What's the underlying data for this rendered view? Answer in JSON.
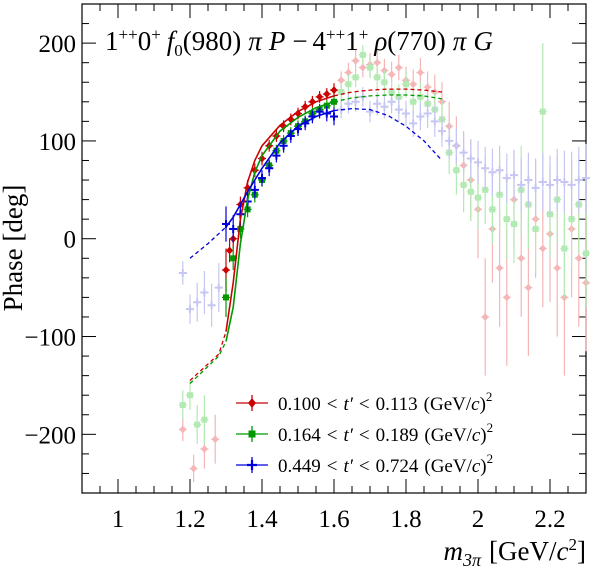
{
  "chart_data": {
    "type": "scatter",
    "title_parts": {
      "wave1_spin": "1",
      "wave1_sup": "++",
      "wave1_m": "0",
      "wave1_msup": "+",
      "isobar1": "f",
      "isobar1_sub": "0",
      "isobar1_mass": "(980)",
      "bachelor1": "π",
      "L1": "P",
      "minus": "−",
      "wave2_spin": "4",
      "wave2_sup": "++",
      "wave2_m": "1",
      "wave2_msup": "+",
      "isobar2": "ρ",
      "isobar2_mass": "(770)",
      "bachelor2": "π",
      "L2": "G"
    },
    "ylabel": "Phase [deg]",
    "xlabel_parts": {
      "var": "m",
      "sub": "3π",
      "unit": "[GeV/",
      "c": "c",
      "sup": "2",
      "close": "]"
    },
    "xlim": [
      0.9,
      2.3
    ],
    "ylim": [
      -260,
      240
    ],
    "xticks": [
      1,
      1.2,
      1.4,
      1.6,
      1.8,
      2,
      2.2
    ],
    "xtick_labels": [
      "1",
      "1.2",
      "1.4",
      "1.6",
      "1.8",
      "2",
      "2.2"
    ],
    "yticks": [
      -200,
      -100,
      0,
      100,
      200
    ],
    "ytick_labels": [
      "−200",
      "−100",
      "0",
      "100",
      "200"
    ],
    "fit_range": [
      1.3,
      1.6
    ],
    "legend_position": "bottom-right",
    "series": [
      {
        "name_parts": {
          "lo": "0.100",
          "lt1": "<",
          "var": "t′",
          "lt2": "<",
          "hi": "0.113",
          "unit": "(GeV/",
          "c": "c",
          "close": ")",
          "sup": "2"
        },
        "color": "#cc0000",
        "light_color": "#f4b6b6",
        "marker": "diamond",
        "points": [
          [
            1.18,
            -195,
            12
          ],
          [
            1.21,
            -235,
            14
          ],
          [
            1.24,
            -215,
            20
          ],
          [
            1.27,
            -205,
            25
          ],
          [
            1.3,
            -32,
            22
          ],
          [
            1.31,
            -12,
            12
          ],
          [
            1.32,
            0,
            10
          ],
          [
            1.34,
            35,
            8
          ],
          [
            1.36,
            52,
            8
          ],
          [
            1.38,
            70,
            7
          ],
          [
            1.4,
            82,
            7
          ],
          [
            1.42,
            95,
            6
          ],
          [
            1.44,
            105,
            6
          ],
          [
            1.46,
            115,
            6
          ],
          [
            1.48,
            122,
            6
          ],
          [
            1.5,
            128,
            6
          ],
          [
            1.52,
            135,
            6
          ],
          [
            1.54,
            140,
            6
          ],
          [
            1.56,
            145,
            6
          ],
          [
            1.58,
            148,
            6
          ],
          [
            1.6,
            152,
            7
          ],
          [
            1.62,
            162,
            9
          ],
          [
            1.64,
            170,
            10
          ],
          [
            1.66,
            182,
            11
          ],
          [
            1.68,
            175,
            10
          ],
          [
            1.7,
            178,
            12
          ],
          [
            1.72,
            180,
            12
          ],
          [
            1.74,
            172,
            12
          ],
          [
            1.76,
            168,
            13
          ],
          [
            1.78,
            175,
            13
          ],
          [
            1.8,
            162,
            14
          ],
          [
            1.82,
            158,
            15
          ],
          [
            1.84,
            170,
            15
          ],
          [
            1.86,
            155,
            16
          ],
          [
            1.88,
            150,
            18
          ],
          [
            1.9,
            140,
            20
          ],
          [
            1.92,
            115,
            25
          ],
          [
            1.94,
            95,
            30
          ],
          [
            1.96,
            75,
            35
          ],
          [
            1.98,
            60,
            40
          ],
          [
            2.0,
            30,
            50
          ],
          [
            2.02,
            -80,
            60
          ],
          [
            2.04,
            10,
            55
          ],
          [
            2.06,
            -30,
            60
          ],
          [
            2.08,
            -60,
            70
          ],
          [
            2.1,
            40,
            50
          ],
          [
            2.12,
            -20,
            60
          ],
          [
            2.14,
            -50,
            70
          ],
          [
            2.16,
            20,
            60
          ],
          [
            2.18,
            -10,
            60
          ],
          [
            2.2,
            5,
            70
          ],
          [
            2.22,
            -30,
            70
          ],
          [
            2.24,
            -60,
            80
          ],
          [
            2.26,
            10,
            70
          ],
          [
            2.28,
            -20,
            70
          ],
          [
            2.3,
            -45,
            70
          ]
        ],
        "fit": [
          [
            1.2,
            -145
          ],
          [
            1.28,
            -118
          ],
          [
            1.3,
            -95
          ],
          [
            1.32,
            -45
          ],
          [
            1.34,
            20
          ],
          [
            1.36,
            58
          ],
          [
            1.38,
            80
          ],
          [
            1.4,
            95
          ],
          [
            1.45,
            116
          ],
          [
            1.5,
            130
          ],
          [
            1.55,
            140
          ],
          [
            1.6,
            146
          ],
          [
            1.65,
            150
          ],
          [
            1.7,
            152
          ],
          [
            1.75,
            153
          ],
          [
            1.8,
            153
          ],
          [
            1.85,
            152
          ],
          [
            1.9,
            150
          ]
        ]
      },
      {
        "name_parts": {
          "lo": "0.164",
          "lt1": "<",
          "var": "t′",
          "lt2": "<",
          "hi": "0.189",
          "unit": "(GeV/",
          "c": "c",
          "close": ")",
          "sup": "2"
        },
        "color": "#009900",
        "light_color": "#b3eab3",
        "marker": "square",
        "points": [
          [
            1.18,
            -170,
            15
          ],
          [
            1.2,
            -160,
            15
          ],
          [
            1.22,
            -190,
            20
          ],
          [
            1.24,
            -185,
            25
          ],
          [
            1.3,
            -60,
            20
          ],
          [
            1.32,
            -20,
            12
          ],
          [
            1.34,
            10,
            10
          ],
          [
            1.36,
            30,
            8
          ],
          [
            1.38,
            45,
            8
          ],
          [
            1.4,
            60,
            7
          ],
          [
            1.42,
            75,
            6
          ],
          [
            1.44,
            90,
            6
          ],
          [
            1.46,
            100,
            6
          ],
          [
            1.48,
            108,
            6
          ],
          [
            1.5,
            115,
            6
          ],
          [
            1.52,
            120,
            6
          ],
          [
            1.54,
            128,
            6
          ],
          [
            1.56,
            132,
            6
          ],
          [
            1.58,
            136,
            6
          ],
          [
            1.6,
            140,
            7
          ],
          [
            1.62,
            150,
            9
          ],
          [
            1.64,
            158,
            10
          ],
          [
            1.66,
            165,
            10
          ],
          [
            1.68,
            188,
            10
          ],
          [
            1.7,
            175,
            11
          ],
          [
            1.72,
            165,
            12
          ],
          [
            1.74,
            160,
            12
          ],
          [
            1.76,
            150,
            13
          ],
          [
            1.78,
            145,
            13
          ],
          [
            1.8,
            158,
            14
          ],
          [
            1.82,
            140,
            15
          ],
          [
            1.84,
            145,
            15
          ],
          [
            1.86,
            138,
            16
          ],
          [
            1.88,
            132,
            18
          ],
          [
            1.9,
            122,
            20
          ],
          [
            1.92,
            88,
            22
          ],
          [
            1.94,
            70,
            25
          ],
          [
            1.96,
            55,
            28
          ],
          [
            1.98,
            48,
            30
          ],
          [
            2.0,
            42,
            32
          ],
          [
            2.02,
            50,
            35
          ],
          [
            2.04,
            30,
            35
          ],
          [
            2.06,
            45,
            40
          ],
          [
            2.08,
            20,
            40
          ],
          [
            2.1,
            15,
            40
          ],
          [
            2.12,
            50,
            45
          ],
          [
            2.14,
            35,
            45
          ],
          [
            2.16,
            10,
            45
          ],
          [
            2.18,
            130,
            70
          ],
          [
            2.2,
            25,
            45
          ],
          [
            2.22,
            40,
            45
          ],
          [
            2.24,
            -10,
            50
          ],
          [
            2.26,
            20,
            50
          ],
          [
            2.28,
            35,
            50
          ],
          [
            2.3,
            -15,
            55
          ]
        ],
        "fit": [
          [
            1.2,
            -148
          ],
          [
            1.28,
            -120
          ],
          [
            1.3,
            -105
          ],
          [
            1.32,
            -70
          ],
          [
            1.34,
            -5
          ],
          [
            1.36,
            40
          ],
          [
            1.38,
            68
          ],
          [
            1.4,
            85
          ],
          [
            1.45,
            110
          ],
          [
            1.5,
            124
          ],
          [
            1.55,
            134
          ],
          [
            1.6,
            140
          ],
          [
            1.65,
            144
          ],
          [
            1.7,
            146
          ],
          [
            1.75,
            147
          ],
          [
            1.8,
            147
          ],
          [
            1.85,
            146
          ],
          [
            1.9,
            143
          ]
        ]
      },
      {
        "name_parts": {
          "lo": "0.449",
          "lt1": "<",
          "var": "t′",
          "lt2": "<",
          "hi": "0.724",
          "unit": "(GeV/",
          "c": "c",
          "close": ")",
          "sup": "2"
        },
        "color": "#0000dd",
        "light_color": "#c6c6f2",
        "marker": "cross",
        "points": [
          [
            1.18,
            -35,
            12
          ],
          [
            1.2,
            -72,
            15
          ],
          [
            1.22,
            -65,
            20
          ],
          [
            1.24,
            -55,
            22
          ],
          [
            1.26,
            -68,
            22
          ],
          [
            1.28,
            -50,
            25
          ],
          [
            1.3,
            15,
            18
          ],
          [
            1.32,
            10,
            14
          ],
          [
            1.34,
            25,
            12
          ],
          [
            1.36,
            38,
            10
          ],
          [
            1.38,
            50,
            9
          ],
          [
            1.4,
            62,
            8
          ],
          [
            1.42,
            72,
            8
          ],
          [
            1.44,
            85,
            7
          ],
          [
            1.46,
            95,
            7
          ],
          [
            1.48,
            105,
            7
          ],
          [
            1.5,
            112,
            7
          ],
          [
            1.52,
            118,
            7
          ],
          [
            1.54,
            125,
            7
          ],
          [
            1.56,
            130,
            7
          ],
          [
            1.58,
            128,
            8
          ],
          [
            1.6,
            125,
            9
          ],
          [
            1.62,
            132,
            9
          ],
          [
            1.64,
            138,
            10
          ],
          [
            1.66,
            140,
            10
          ],
          [
            1.68,
            145,
            10
          ],
          [
            1.7,
            130,
            11
          ],
          [
            1.72,
            138,
            12
          ],
          [
            1.74,
            135,
            12
          ],
          [
            1.76,
            140,
            12
          ],
          [
            1.78,
            132,
            13
          ],
          [
            1.8,
            128,
            13
          ],
          [
            1.82,
            118,
            14
          ],
          [
            1.84,
            125,
            14
          ],
          [
            1.86,
            128,
            15
          ],
          [
            1.88,
            120,
            16
          ],
          [
            1.9,
            110,
            16
          ],
          [
            1.92,
            100,
            18
          ],
          [
            1.94,
            95,
            18
          ],
          [
            1.96,
            88,
            20
          ],
          [
            1.98,
            82,
            20
          ],
          [
            2.0,
            78,
            22
          ],
          [
            2.02,
            72,
            22
          ],
          [
            2.04,
            68,
            24
          ],
          [
            2.06,
            70,
            25
          ],
          [
            2.08,
            62,
            25
          ],
          [
            2.1,
            65,
            26
          ],
          [
            2.12,
            55,
            28
          ],
          [
            2.14,
            60,
            28
          ],
          [
            2.16,
            52,
            30
          ],
          [
            2.18,
            58,
            30
          ],
          [
            2.2,
            55,
            30
          ],
          [
            2.22,
            60,
            32
          ],
          [
            2.24,
            58,
            32
          ],
          [
            2.26,
            55,
            34
          ],
          [
            2.28,
            60,
            34
          ],
          [
            2.3,
            62,
            35
          ]
        ],
        "fit": [
          [
            1.2,
            -20
          ],
          [
            1.25,
            -5
          ],
          [
            1.3,
            12
          ],
          [
            1.32,
            22
          ],
          [
            1.34,
            35
          ],
          [
            1.36,
            48
          ],
          [
            1.38,
            60
          ],
          [
            1.4,
            72
          ],
          [
            1.45,
            98
          ],
          [
            1.5,
            115
          ],
          [
            1.55,
            125
          ],
          [
            1.6,
            131
          ],
          [
            1.65,
            133
          ],
          [
            1.7,
            132
          ],
          [
            1.75,
            126
          ],
          [
            1.8,
            115
          ],
          [
            1.85,
            100
          ],
          [
            1.9,
            80
          ]
        ]
      }
    ]
  }
}
